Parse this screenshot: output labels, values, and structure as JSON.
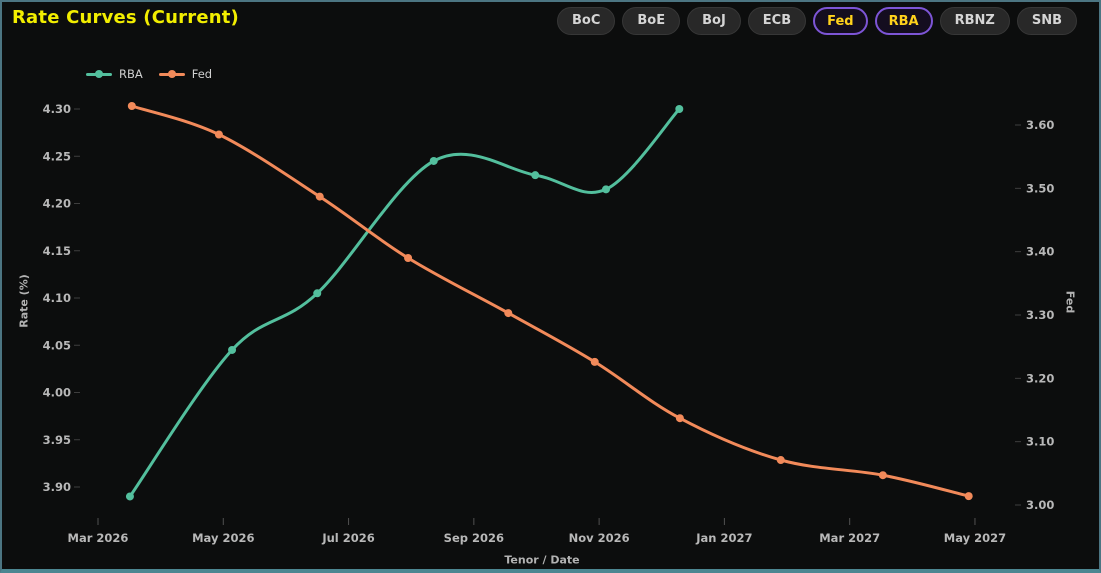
{
  "header": {
    "title": "Rate Curves (Current)",
    "buttons": [
      {
        "label": "BoC",
        "selected": false
      },
      {
        "label": "BoE",
        "selected": false
      },
      {
        "label": "BoJ",
        "selected": false
      },
      {
        "label": "ECB",
        "selected": false
      },
      {
        "label": "Fed",
        "selected": true
      },
      {
        "label": "RBA",
        "selected": true
      },
      {
        "label": "RBNZ",
        "selected": false
      },
      {
        "label": "SNB",
        "selected": false
      }
    ]
  },
  "legend": {
    "items": [
      {
        "label": "RBA",
        "color": "#53bf9d"
      },
      {
        "label": "Fed",
        "color": "#f28a5a"
      }
    ]
  },
  "colors": {
    "rba_line": "#53bf9d",
    "fed_line": "#f28a5a",
    "title_text": "#f2ee00",
    "selected_button_text": "#ffd21c",
    "selected_button_border": "#7d55d6",
    "panel_border": "#4c7582",
    "tick_text": "#b8b8b8",
    "background": "#0c0d0d"
  },
  "chart_data": {
    "type": "line",
    "title": "Rate Curves (Current)",
    "xlabel": "Tenor / Date",
    "ylabel_left": "Rate (%)",
    "ylabel_right": "Fed",
    "grid": false,
    "legend_position": "top-left",
    "x_axis": {
      "ticks": [
        "Mar 2026",
        "May 2026",
        "Jul 2026",
        "Sep 2026",
        "Nov 2026",
        "Jan 2027",
        "Mar 2027",
        "May 2027"
      ],
      "tick_t": [
        0,
        2,
        4,
        6,
        8,
        10,
        12,
        14
      ]
    },
    "left_axis": {
      "label": "Rate (%)",
      "ticks": [
        3.9,
        3.95,
        4.0,
        4.05,
        4.1,
        4.15,
        4.2,
        4.25,
        4.3
      ]
    },
    "right_axis": {
      "label": "Fed",
      "ticks": [
        3.0,
        3.1,
        3.2,
        3.3,
        3.4,
        3.5,
        3.6
      ]
    },
    "series": [
      {
        "name": "RBA",
        "axis": "left",
        "color": "#53bf9d",
        "points": [
          {
            "t": 0.51,
            "date_approx": "2026-03-17",
            "value": 3.89
          },
          {
            "t": 2.14,
            "date_approx": "2026-05-05",
            "value": 4.045
          },
          {
            "t": 3.5,
            "date_approx": "2026-06-16",
            "value": 4.105
          },
          {
            "t": 5.36,
            "date_approx": "2026-08-11",
            "value": 4.245
          },
          {
            "t": 6.98,
            "date_approx": "2026-09-29",
            "value": 4.23
          },
          {
            "t": 8.11,
            "date_approx": "2026-11-03",
            "value": 4.215
          },
          {
            "t": 9.28,
            "date_approx": "2026-12-08",
            "value": 4.3
          }
        ]
      },
      {
        "name": "Fed",
        "axis": "right",
        "color": "#f28a5a",
        "points": [
          {
            "t": 0.54,
            "date_approx": "2026-03-18",
            "value": 3.63
          },
          {
            "t": 1.93,
            "date_approx": "2026-04-29",
            "value": 3.585
          },
          {
            "t": 3.54,
            "date_approx": "2026-06-17",
            "value": 3.487
          },
          {
            "t": 4.95,
            "date_approx": "2026-07-29",
            "value": 3.39
          },
          {
            "t": 6.55,
            "date_approx": "2026-09-16",
            "value": 3.303
          },
          {
            "t": 7.93,
            "date_approx": "2026-10-28",
            "value": 3.226
          },
          {
            "t": 9.29,
            "date_approx": "2026-12-09",
            "value": 3.137
          },
          {
            "t": 10.9,
            "date_approx": "2027-01-27",
            "value": 3.071
          },
          {
            "t": 12.53,
            "date_approx": "2027-03-17",
            "value": 3.047
          },
          {
            "t": 13.9,
            "date_approx": "2027-04-28",
            "value": 3.014
          }
        ]
      }
    ]
  }
}
